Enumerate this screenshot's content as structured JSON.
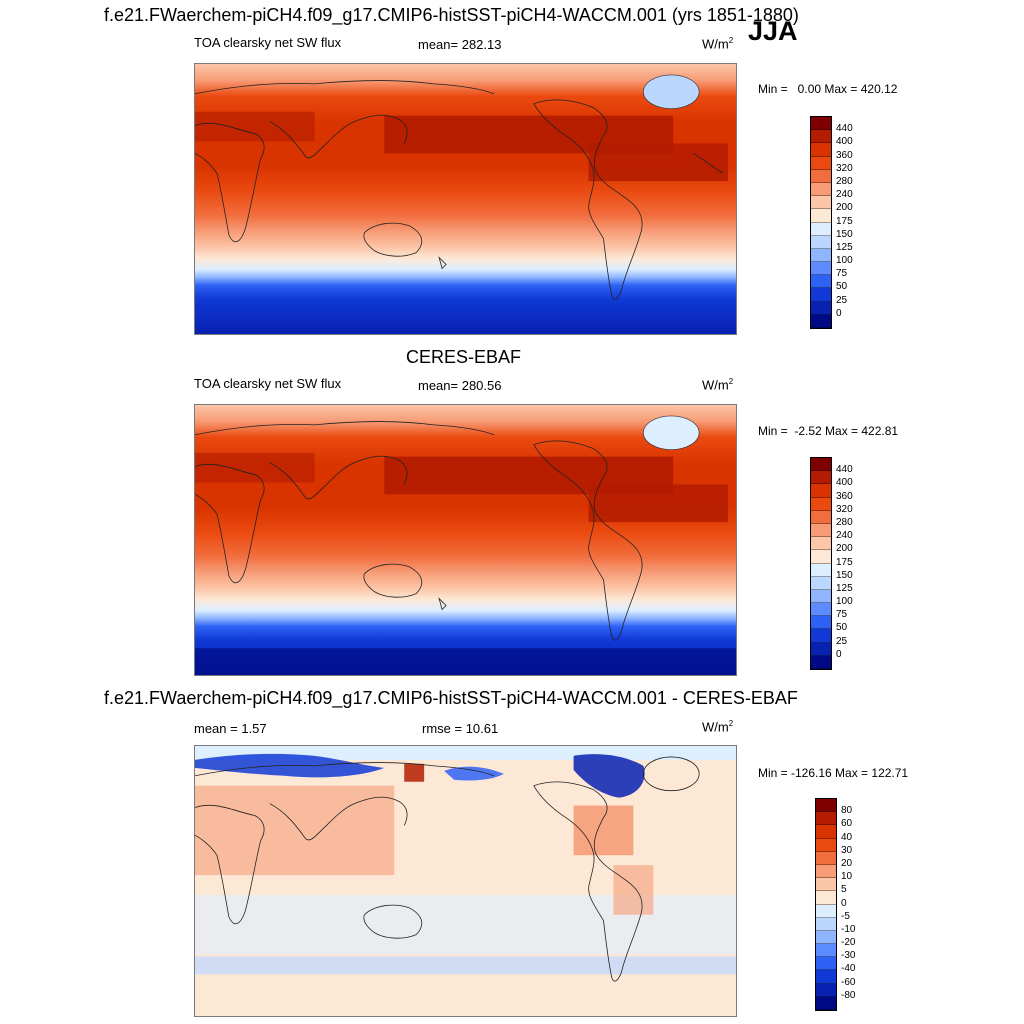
{
  "panels": [
    {
      "title": "f.e21.FWaerchem-piCH4.f09_g17.CMIP6-histSST-piCH4-WACCM.001 (yrs 1851-1880)",
      "field": "TOA clearsky net SW flux",
      "stat": "mean= 282.13",
      "units": "W/m",
      "units_sup": "2",
      "minmax": "Min =   0.00 Max = 420.12",
      "season": "JJA"
    },
    {
      "title": "CERES-EBAF",
      "field": "TOA clearsky net SW flux",
      "stat": "mean= 280.56",
      "units": "W/m",
      "units_sup": "2",
      "minmax": "Min =  -2.52 Max = 422.81"
    },
    {
      "title": "f.e21.FWaerchem-piCH4.f09_g17.CMIP6-histSST-piCH4-WACCM.001 - CERES-EBAF",
      "stat_mean": "mean =   1.57",
      "stat_rmse": "rmse =  10.61",
      "units": "W/m",
      "units_sup": "2",
      "minmax": "Min = -126.16 Max = 122.71"
    }
  ],
  "colorbar_abs": {
    "labels": [
      "440",
      "400",
      "360",
      "320",
      "280",
      "240",
      "200",
      "175",
      "150",
      "125",
      "100",
      "75",
      "50",
      "25",
      "0"
    ],
    "colors": [
      "#7f0000",
      "#b31c00",
      "#d93300",
      "#ea4a10",
      "#f26d3d",
      "#f79c77",
      "#fcc6a8",
      "#fde8d6",
      "#ddeeff",
      "#bcd7ff",
      "#8fb5ff",
      "#5c8cff",
      "#2e62f5",
      "#1039d6",
      "#0821b0",
      "#000a85"
    ]
  },
  "colorbar_diff": {
    "labels": [
      "80",
      "60",
      "40",
      "30",
      "20",
      "10",
      "5",
      "0",
      "-5",
      "-10",
      "-20",
      "-30",
      "-40",
      "-60",
      "-80"
    ],
    "colors": [
      "#7f0000",
      "#b31c00",
      "#d93300",
      "#ea4a10",
      "#f26d3d",
      "#f79c77",
      "#fcc6a8",
      "#fde8d6",
      "#ddeeff",
      "#bcd7ff",
      "#8fb5ff",
      "#5c8cff",
      "#2e62f5",
      "#1039d6",
      "#0821b0",
      "#000a85"
    ]
  }
}
